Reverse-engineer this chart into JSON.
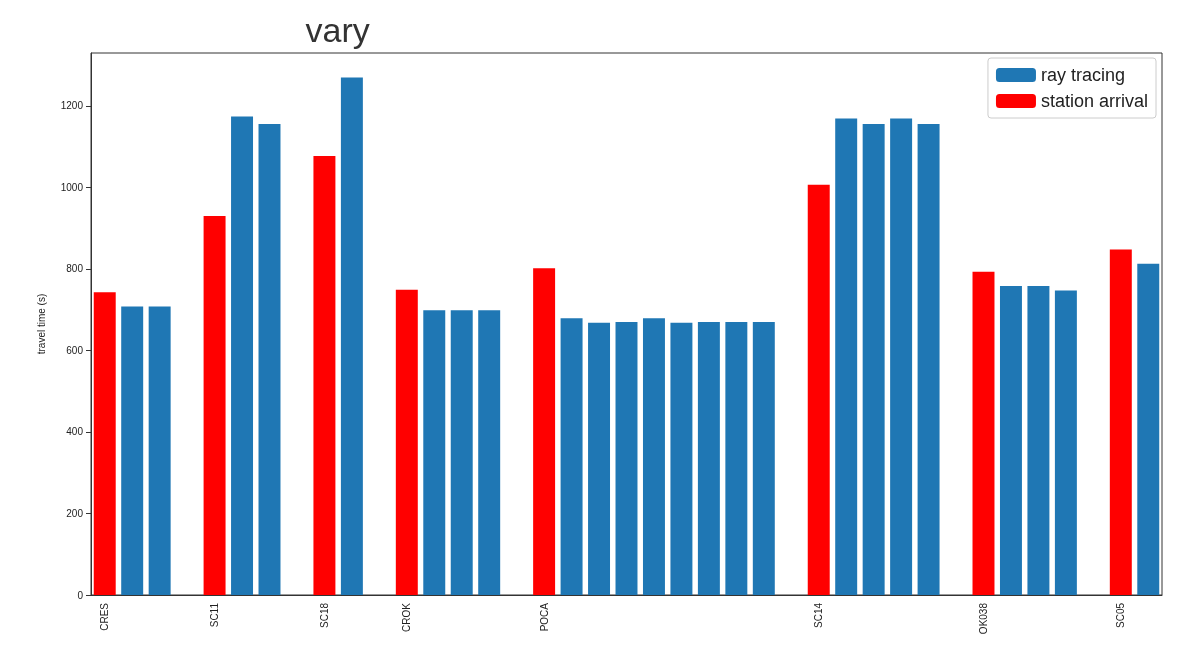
{
  "chart_data": {
    "type": "bar",
    "title": "vary",
    "ylabel": "travel time (s)",
    "categories": [
      "CRES",
      null,
      null,
      null,
      "SC11",
      null,
      null,
      null,
      "SC18",
      null,
      null,
      "CROK",
      null,
      null,
      null,
      null,
      "POCA",
      null,
      null,
      null,
      null,
      null,
      null,
      null,
      null,
      null,
      "SC14",
      null,
      null,
      null,
      null,
      null,
      "OK038",
      null,
      null,
      null,
      null,
      "SC05",
      null
    ],
    "series": [
      {
        "name": "ray tracing",
        "color": "#1f77b4",
        "values": [
          null,
          708,
          708,
          null,
          null,
          1174,
          1156,
          null,
          null,
          1270,
          null,
          null,
          699,
          699,
          699,
          null,
          null,
          679,
          668,
          670,
          679,
          668,
          670,
          670,
          670,
          null,
          null,
          1169,
          1156,
          1169,
          1156,
          null,
          null,
          758,
          758,
          747,
          null,
          null,
          813
        ]
      },
      {
        "name": "station arrival",
        "color": "#ff0000",
        "values": [
          743,
          null,
          null,
          null,
          930,
          null,
          null,
          null,
          1077,
          null,
          null,
          749,
          null,
          null,
          null,
          null,
          802,
          null,
          null,
          null,
          null,
          null,
          null,
          null,
          null,
          null,
          1007,
          null,
          null,
          null,
          null,
          null,
          793,
          null,
          null,
          null,
          null,
          848,
          null
        ]
      }
    ],
    "ylim": [
      0,
      1330
    ],
    "yticks": [
      0,
      200,
      400,
      600,
      800,
      1000,
      1200
    ],
    "grid": false,
    "legend": "top right"
  }
}
